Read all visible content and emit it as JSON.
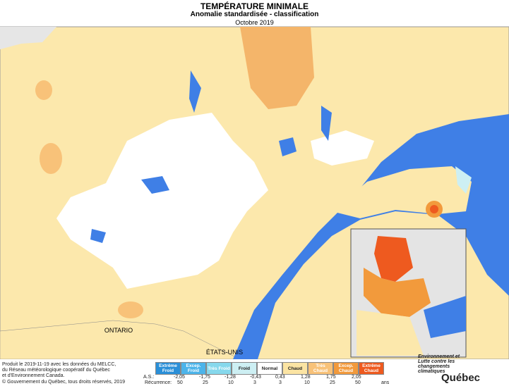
{
  "header": {
    "title": "TEMPÉRATURE MINIMALE",
    "subtitle": "Anomalie standardisée - classification",
    "period": "Octobre 2019"
  },
  "map_labels": {
    "ontario": "ONTARIO",
    "usa": "ÉTATS-UNIS"
  },
  "legend": {
    "classes": [
      {
        "label": "Extrême Froid",
        "color": "#2a8fd8"
      },
      {
        "label": "Excep. Froid",
        "color": "#4cb4ea"
      },
      {
        "label": "Très Froid",
        "color": "#86d8ec"
      },
      {
        "label": "Froid",
        "color": "#cdeff3"
      },
      {
        "label": "Normal",
        "color": "#ffffff"
      },
      {
        "label": "Chaud",
        "color": "#fbe4a3"
      },
      {
        "label": "Très Chaud",
        "color": "#f8c279"
      },
      {
        "label": "Excep. Chaud",
        "color": "#f29a3c"
      },
      {
        "label": "Extrême Chaud",
        "color": "#ee5a1f"
      }
    ],
    "as_label": "A.S.:",
    "thresholds": [
      "-2,05",
      "-1,75",
      "-1,28",
      "-0,43",
      "0,43",
      "1,28",
      "1,75",
      "2,05"
    ],
    "recurrence_label": "Récurrence:",
    "recurrence": [
      "50",
      "25",
      "10",
      "3",
      "3",
      "10",
      "25",
      "50"
    ],
    "recurrence_unit": "ans"
  },
  "footer": {
    "lines": [
      "Produit le 2019-11-19 avec les données du MELCC,",
      "du Réseau météorologique coopératif du Québec",
      "et d'Environnement Canada."
    ],
    "copyright": "© Gouvernement du Québec, tous droits réservés, 2019"
  },
  "logo": {
    "department": "Environnement et Lutte contre les changements climatiques",
    "name": "Québec"
  }
}
